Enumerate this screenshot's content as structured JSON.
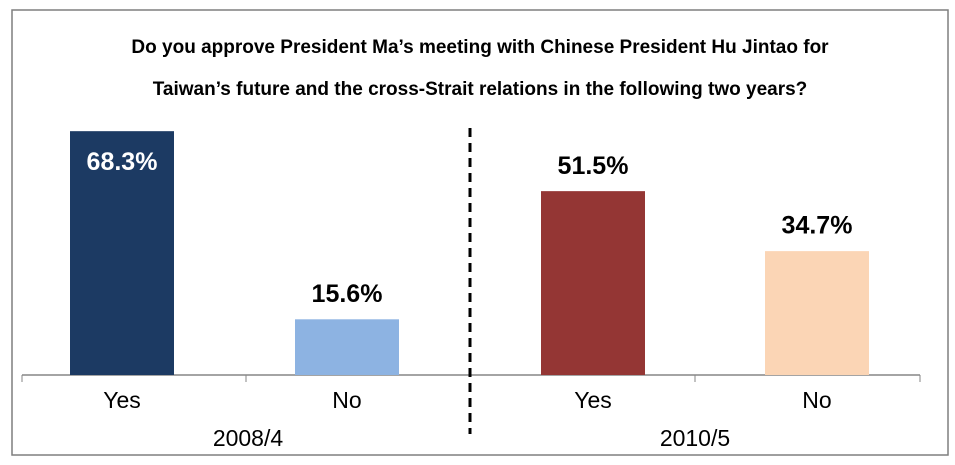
{
  "chart_data": {
    "type": "bar",
    "title": [
      "Do you approve President Ma’s meeting with Chinese President Hu Jintao for",
      "Taiwan’s future and the cross-Strait relations in the following two years?"
    ],
    "categories": [
      "Yes",
      "No",
      "Yes",
      "No"
    ],
    "groups": [
      "2008/4",
      "2010/5"
    ],
    "values": [
      68.3,
      15.6,
      51.5,
      34.7
    ],
    "value_labels": [
      "68.3%",
      "15.6%",
      "51.5%",
      "34.7%"
    ],
    "colors": [
      "#1c3a63",
      "#8db3e2",
      "#943634",
      "#fbd5b5"
    ]
  }
}
